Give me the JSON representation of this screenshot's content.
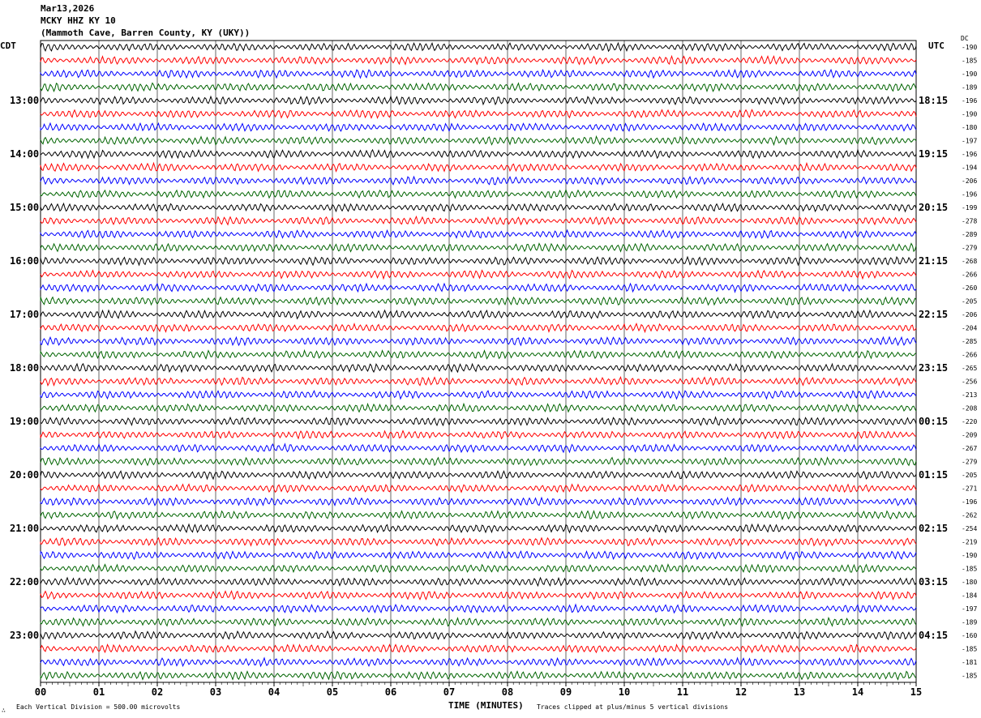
{
  "header": {
    "date": "Mar13,2026",
    "station": "MCKY HHZ KY 10",
    "location": "(Mammoth Cave, Barren County, KY (UKY))"
  },
  "left_tz": "CDT",
  "right_tz": "UTC",
  "dc_label": "DC",
  "footer": {
    "scale": "Each Vertical Division =  500.00 microvolts",
    "clip": "Traces clipped at plus/minus 5 vertical divisions",
    "corner": "∴"
  },
  "chart_data": {
    "type": "line",
    "title": "MCKY HHZ KY 10 helicorder",
    "xlabel": "TIME (MINUTES)",
    "xlim": [
      0,
      15
    ],
    "x_ticks": [
      "00",
      "01",
      "02",
      "03",
      "04",
      "05",
      "06",
      "07",
      "08",
      "09",
      "10",
      "11",
      "12",
      "13",
      "14",
      "15"
    ],
    "traces_per_hour": 4,
    "trace_colors": [
      "#000000",
      "#ff0000",
      "#0000ff",
      "#006400"
    ],
    "left_hour_labels": [
      "13:00",
      "14:00",
      "15:00",
      "16:00",
      "17:00",
      "18:00",
      "19:00",
      "20:00",
      "21:00",
      "22:00",
      "23:00"
    ],
    "right_hour_labels": [
      "18:15",
      "19:15",
      "20:15",
      "21:15",
      "22:15",
      "23:15",
      "00:15",
      "01:15",
      "02:15",
      "03:15",
      "04:15"
    ],
    "dc_offsets": [
      -190,
      -185,
      -190,
      -189,
      -196,
      -190,
      -180,
      -197,
      -196,
      -194,
      -206,
      -196,
      -199,
      -278,
      -289,
      -279,
      -268,
      -266,
      -260,
      -205,
      -206,
      -204,
      -285,
      -266,
      -265,
      -256,
      -213,
      -208,
      -220,
      -209,
      -267,
      -279,
      -205,
      -271,
      -196,
      -262,
      -254,
      -219,
      -190,
      -185,
      -180,
      -184,
      -197,
      -189,
      -160,
      -185,
      -181,
      -185
    ]
  }
}
